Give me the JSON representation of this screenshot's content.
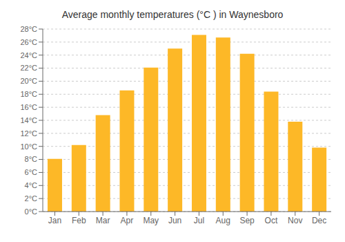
{
  "chart_data": {
    "type": "bar",
    "title": "Average monthly temperatures (°C ) in Waynesboro",
    "categories": [
      "Jan",
      "Feb",
      "Mar",
      "Apr",
      "May",
      "Jun",
      "Jul",
      "Aug",
      "Sep",
      "Oct",
      "Nov",
      "Dec"
    ],
    "values": [
      8.1,
      10.2,
      14.8,
      18.6,
      22.1,
      25.0,
      27.1,
      26.7,
      24.2,
      18.4,
      13.8,
      9.8
    ],
    "color": "#FDB827",
    "ylim": [
      0,
      28
    ],
    "yticks": [
      {
        "value": 0,
        "label": "0°C"
      },
      {
        "value": 2,
        "label": "2°C"
      },
      {
        "value": 4,
        "label": "4°C"
      },
      {
        "value": 6,
        "label": "6°C"
      },
      {
        "value": 8,
        "label": "8°C"
      },
      {
        "value": 10,
        "label": "10°C"
      },
      {
        "value": 12,
        "label": "12°C"
      },
      {
        "value": 14,
        "label": "14°C"
      },
      {
        "value": 16,
        "label": "16°C"
      },
      {
        "value": 18,
        "label": "18°C"
      },
      {
        "value": 20,
        "label": "20°C"
      },
      {
        "value": 22,
        "label": "22°C"
      },
      {
        "value": 24,
        "label": "24°C"
      },
      {
        "value": 26,
        "label": "26°C"
      },
      {
        "value": 28,
        "label": "28°C"
      }
    ],
    "grid": true
  }
}
